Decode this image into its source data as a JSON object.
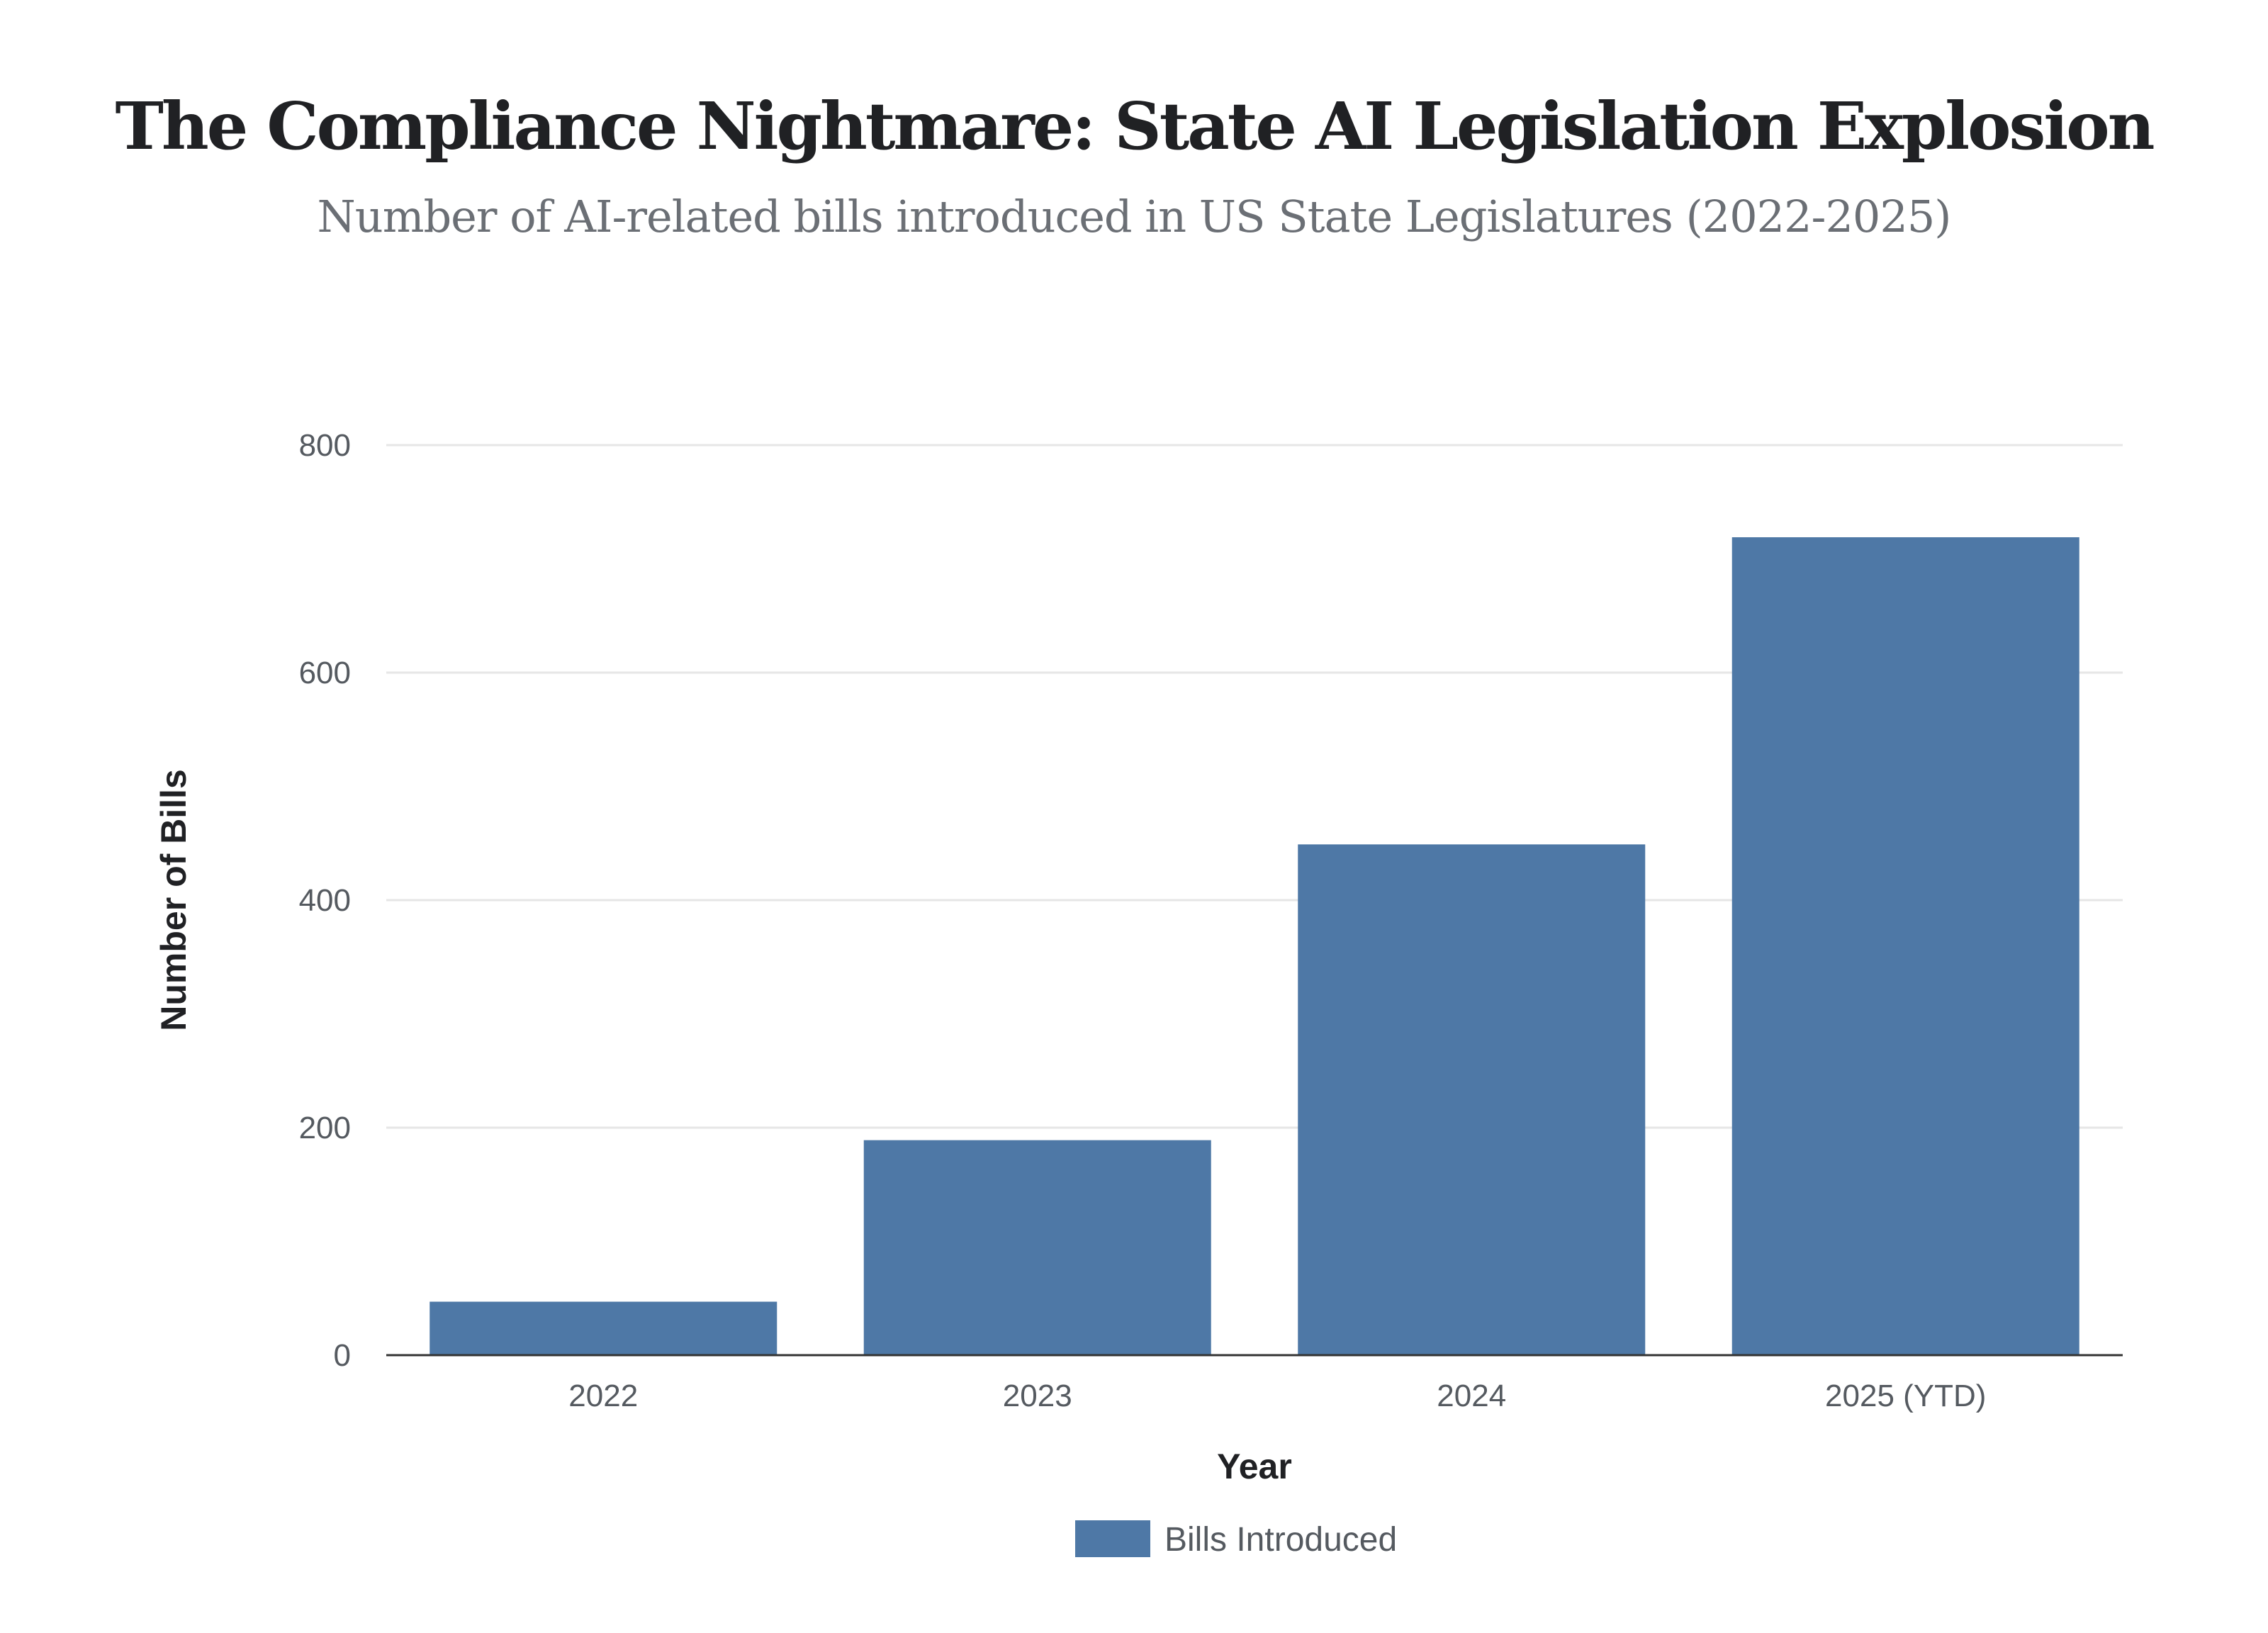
{
  "chart_data": {
    "type": "bar",
    "title": "The Compliance Nightmare: State AI Legislation Explosion",
    "subtitle": "Number of AI-related bills introduced in US State Legislatures (2022-2025)",
    "categories": [
      "2022",
      "2023",
      "2024",
      "2025 (YTD)"
    ],
    "series": [
      {
        "name": "Bills Introduced",
        "values": [
          47,
          189,
          449,
          719
        ],
        "color": "#4e78a6"
      }
    ],
    "xlabel": "Year",
    "ylabel": "Number of Bills",
    "ylim": [
      0,
      800
    ],
    "yticks": [
      "0",
      "200",
      "400",
      "600",
      "800"
    ],
    "grid": true,
    "legend_position": "bottom-center"
  }
}
